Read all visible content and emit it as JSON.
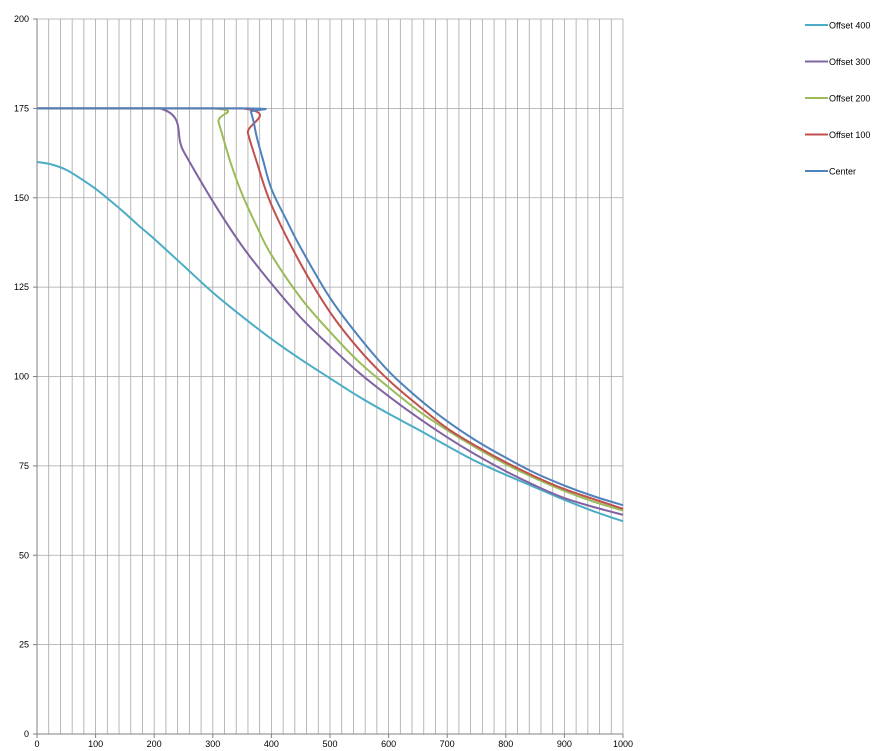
{
  "chart_data": {
    "type": "line",
    "title": "",
    "xlabel": "",
    "ylabel": "",
    "xlim": [
      0,
      1000
    ],
    "ylim": [
      0,
      200
    ],
    "x_ticks": [
      0,
      100,
      200,
      300,
      400,
      500,
      600,
      700,
      800,
      900,
      1000
    ],
    "y_ticks": [
      0,
      25,
      50,
      75,
      100,
      125,
      150,
      175,
      200
    ],
    "x_minor_step": 20,
    "grid": true,
    "legend_position": "top-right",
    "series": [
      {
        "name": "Offset 400",
        "color": "#4bacc6",
        "x": [
          0,
          25,
          50,
          75,
          100,
          125,
          150,
          175,
          200,
          250,
          300,
          350,
          400,
          450,
          500,
          550,
          600,
          650,
          700,
          750,
          800,
          850,
          900,
          950,
          1000
        ],
        "y": [
          160,
          159.3,
          157.8,
          155.3,
          152.5,
          149.2,
          145.7,
          142,
          138.5,
          131,
          123.5,
          116.8,
          110.5,
          104.8,
          99.5,
          94.3,
          89.6,
          85.2,
          80.6,
          76.2,
          72.5,
          69,
          65.5,
          62.3,
          59.5
        ]
      },
      {
        "name": "Offset 300",
        "color": "#8064a2",
        "x": [
          0,
          210,
          250,
          300,
          350,
          400,
          450,
          500,
          550,
          600,
          650,
          700,
          750,
          800,
          850,
          900,
          950,
          1000
        ],
        "y": [
          175,
          175,
          163,
          149,
          136.5,
          126,
          116.5,
          108.5,
          101,
          94.5,
          88.5,
          83,
          78,
          73.5,
          69.5,
          66,
          63.5,
          61.3
        ]
      },
      {
        "name": "Offset 200",
        "color": "#9bbb59",
        "x": [
          0,
          300,
          310,
          330,
          350,
          375,
          400,
          450,
          500,
          550,
          600,
          650,
          700,
          750,
          800,
          850,
          900,
          950,
          1000
        ],
        "y": [
          175,
          175,
          171,
          160,
          151,
          142,
          134,
          122,
          112.5,
          104,
          97,
          90.5,
          85,
          80,
          75.5,
          71.5,
          68,
          65,
          62.5
        ]
      },
      {
        "name": "Offset 100",
        "color": "#c0504d",
        "x": [
          0,
          350,
          360,
          375,
          400,
          450,
          500,
          550,
          600,
          650,
          700,
          750,
          800,
          850,
          900,
          950,
          1000
        ],
        "y": [
          175,
          175,
          168,
          160,
          148,
          131.5,
          118,
          107.5,
          99,
          92,
          85.5,
          80.5,
          76,
          72,
          68.5,
          65.7,
          63
        ]
      },
      {
        "name": "Center",
        "color": "#4f81bd",
        "x": [
          0,
          360,
          365,
          370,
          375,
          385,
          400,
          425,
          450,
          500,
          550,
          600,
          650,
          700,
          750,
          800,
          850,
          900,
          950,
          1000
        ],
        "y": [
          175,
          175,
          174,
          171,
          167,
          161,
          152.5,
          144,
          136,
          122,
          111,
          101.5,
          94,
          87.5,
          82,
          77.3,
          73,
          69.5,
          66.5,
          64
        ]
      }
    ]
  }
}
